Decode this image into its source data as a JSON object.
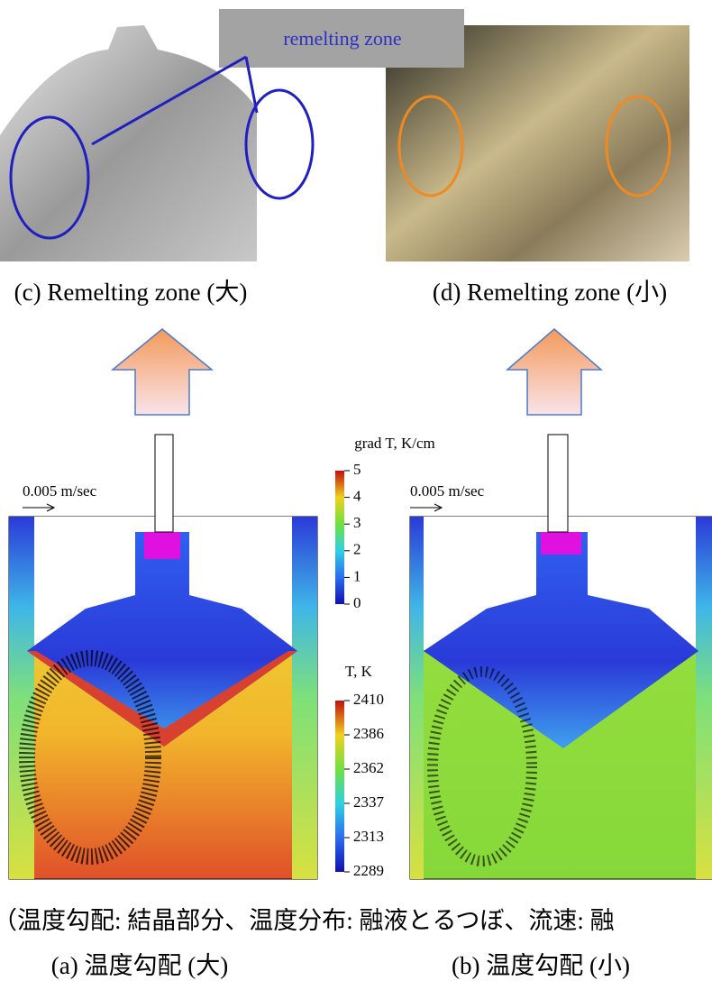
{
  "photos": {
    "label_box": "remelting zone",
    "left_caption": "(c) Remelting zone (大)",
    "right_caption": "(d) Remelting zone (小)"
  },
  "simulation": {
    "velocity_scale_left": "0.005 m/sec",
    "velocity_scale_right": "0.005 m/sec",
    "grad_colorbar": {
      "title": "grad T, K/cm",
      "ticks": [
        "5",
        "4",
        "3",
        "2",
        "1",
        "0"
      ]
    },
    "temp_colorbar": {
      "title": "T, K",
      "ticks": [
        "2410",
        "2386",
        "2362",
        "2337",
        "2313",
        "2289"
      ]
    }
  },
  "note": "（温度勾配: 結晶部分、温度分布: 融液とるつぼ、流速: 融",
  "captions": {
    "a": "(a) 温度勾配 (大)",
    "b": "(b) 温度勾配 (小)"
  }
}
